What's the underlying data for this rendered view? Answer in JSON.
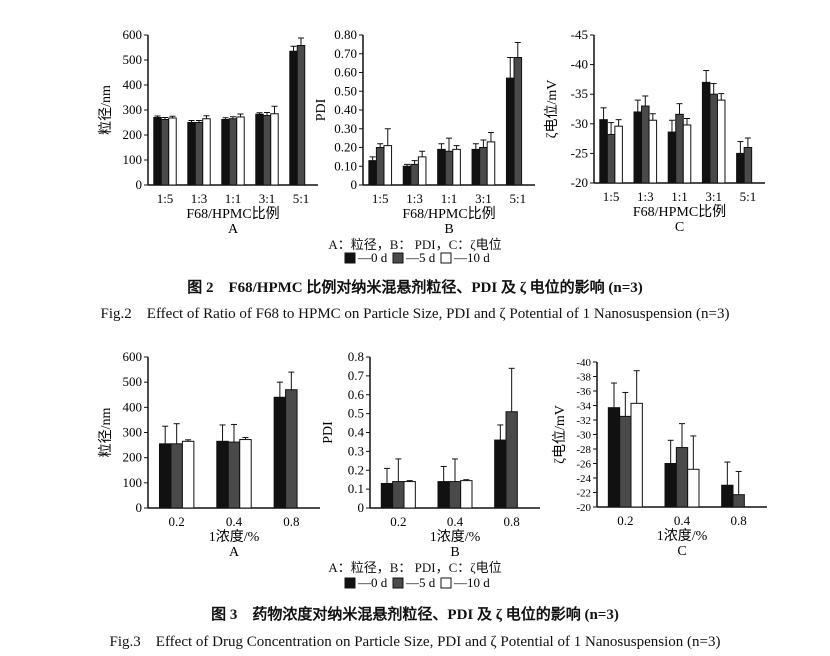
{
  "figures": [
    {
      "legend_text": "A：粒径，B： PDI，C：ζ电位",
      "legend": [
        "0 d",
        "5 d",
        "10 d"
      ],
      "caption_cn": "图 2　F68/HPMC 比例对纳米混悬剂粒径、PDI 及 ζ 电位的影响 (n=3)",
      "caption_en": "Fig.2　Effect of Ratio of F68 to HPMC on Particle Size, PDI and ζ Potential of 1 Nanosuspension (n=3)"
    },
    {
      "legend_text": "A：粒径，B： PDI，C：ζ电位",
      "legend": [
        "0 d",
        "5 d",
        "10 d"
      ],
      "caption_cn": "图 3　药物浓度对纳米混悬剂粒径、PDI 及 ζ 电位的影响 (n=3)",
      "caption_en": "Fig.3　Effect of Drug Concentration on Particle Size, PDI and ζ Potential of 1 Nanosuspension (n=3)"
    }
  ],
  "colors": {
    "0 d": "#111111",
    "5 d": "#4a4a4a",
    "10 d": "#ffffff"
  },
  "chart_data": [
    {
      "type": "bar",
      "panel": "A",
      "xlabel": "F68/HPMC比例",
      "ylabel": "粒径/nm",
      "categories": [
        "1:5",
        "1:3",
        "1:1",
        "3:1",
        "5:1"
      ],
      "ylim": [
        0,
        600
      ],
      "yticks": [
        0,
        100,
        200,
        300,
        400,
        500,
        600
      ],
      "ytick_labels": [
        "0",
        "100",
        "200",
        "300",
        "400",
        "500",
        "600"
      ],
      "series": [
        {
          "name": "0 d",
          "values": [
            270,
            250,
            262,
            283,
            535
          ],
          "errors": [
            6,
            8,
            7,
            6,
            20
          ]
        },
        {
          "name": "5 d",
          "values": [
            262,
            250,
            265,
            278,
            558
          ],
          "errors": [
            8,
            8,
            8,
            12,
            30
          ]
        },
        {
          "name": "10 d",
          "values": [
            268,
            265,
            272,
            285,
            null
          ],
          "errors": [
            7,
            12,
            12,
            30,
            null
          ]
        }
      ]
    },
    {
      "type": "bar",
      "panel": "B",
      "xlabel": "F68/HPMC比例",
      "ylabel": "PDI",
      "categories": [
        "1:5",
        "1:3",
        "1:1",
        "3:1",
        "5:1"
      ],
      "ylim": [
        0,
        0.8
      ],
      "yticks": [
        0,
        0.1,
        0.2,
        0.3,
        0.4,
        0.5,
        0.6,
        0.7,
        0.8
      ],
      "ytick_labels": [
        "0",
        "0.10",
        "0.20",
        "0.30",
        "0.40",
        "0.50",
        "0.60",
        "0.70",
        "0.80"
      ],
      "series": [
        {
          "name": "0 d",
          "values": [
            0.13,
            0.1,
            0.19,
            0.19,
            0.57
          ],
          "errors": [
            0.02,
            0.01,
            0.03,
            0.03,
            0.11
          ]
        },
        {
          "name": "5 d",
          "values": [
            0.2,
            0.11,
            0.18,
            0.2,
            0.68
          ],
          "errors": [
            0.02,
            0.02,
            0.07,
            0.04,
            0.08
          ]
        },
        {
          "name": "10 d",
          "values": [
            0.21,
            0.15,
            0.19,
            0.23,
            null
          ],
          "errors": [
            0.09,
            0.03,
            0.02,
            0.05,
            null
          ]
        }
      ]
    },
    {
      "type": "bar",
      "panel": "C",
      "xlabel": "F68/HPMC比例",
      "ylabel": "ζ电位/mV",
      "categories": [
        "1:5",
        "1:3",
        "1:1",
        "3:1",
        "5:1"
      ],
      "ylim": [
        -20,
        -45
      ],
      "yticks": [
        -20,
        -25,
        -30,
        -35,
        -40,
        -45
      ],
      "ytick_labels": [
        "-20",
        "-25",
        "-30",
        "-35",
        "-40",
        "-45"
      ],
      "series": [
        {
          "name": "0 d",
          "values": [
            -30.7,
            -32,
            -28.6,
            -37,
            -25
          ],
          "errors": [
            2,
            2,
            2,
            2,
            2
          ]
        },
        {
          "name": "5 d",
          "values": [
            -28.2,
            -33,
            -31.6,
            -35,
            -26
          ],
          "errors": [
            2,
            1.7,
            1.8,
            1.8,
            1.6
          ]
        },
        {
          "name": "10 d",
          "values": [
            -29.6,
            -30.6,
            -29.8,
            -34,
            null
          ],
          "errors": [
            1.1,
            1.1,
            1.1,
            1.1,
            null
          ]
        }
      ]
    },
    {
      "type": "bar",
      "panel": "A",
      "xlabel": "1浓度/%",
      "ylabel": "粒径/nm",
      "categories": [
        "0.2",
        "0.4",
        "0.8"
      ],
      "ylim": [
        0,
        600
      ],
      "yticks": [
        0,
        100,
        200,
        300,
        400,
        500,
        600
      ],
      "ytick_labels": [
        "0",
        "100",
        "200",
        "300",
        "400",
        "500",
        "600"
      ],
      "series": [
        {
          "name": "0 d",
          "values": [
            255,
            265,
            440
          ],
          "errors": [
            70,
            65,
            60
          ]
        },
        {
          "name": "5 d",
          "values": [
            255,
            262,
            470
          ],
          "errors": [
            80,
            70,
            70
          ]
        },
        {
          "name": "10 d",
          "values": [
            265,
            272,
            null
          ],
          "errors": [
            6,
            8,
            null
          ]
        }
      ]
    },
    {
      "type": "bar",
      "panel": "B",
      "xlabel": "1浓度/%",
      "ylabel": "PDI",
      "categories": [
        "0.2",
        "0.4",
        "0.8"
      ],
      "ylim": [
        0,
        0.8
      ],
      "yticks": [
        0,
        0.1,
        0.2,
        0.3,
        0.4,
        0.5,
        0.6,
        0.7,
        0.8
      ],
      "ytick_labels": [
        "0",
        "0.1",
        "0.2",
        "0.3",
        "0.4",
        "0.5",
        "0.6",
        "0.7",
        "0.8"
      ],
      "series": [
        {
          "name": "0 d",
          "values": [
            0.13,
            0.14,
            0.36
          ],
          "errors": [
            0.08,
            0.08,
            0.08
          ]
        },
        {
          "name": "5 d",
          "values": [
            0.14,
            0.14,
            0.51
          ],
          "errors": [
            0.12,
            0.12,
            0.23
          ]
        },
        {
          "name": "10 d",
          "values": [
            0.14,
            0.145,
            null
          ],
          "errors": [
            0.005,
            0.005,
            null
          ]
        }
      ]
    },
    {
      "type": "bar",
      "panel": "C",
      "xlabel": "1浓度/%",
      "ylabel": "ζ电位/mV",
      "categories": [
        "0.2",
        "0.4",
        "0.8"
      ],
      "ylim": [
        -20,
        -40
      ],
      "yticks": [
        -20,
        -22,
        -24,
        -26,
        -28,
        -30,
        -32,
        -34,
        -36,
        -38,
        -40
      ],
      "ytick_labels": [
        "-20",
        "-22",
        "-24",
        "-26",
        "-28",
        "-30",
        "-32",
        "-34",
        "-36",
        "-38",
        "-40"
      ],
      "series": [
        {
          "name": "0 d",
          "values": [
            -33.7,
            -26,
            -23
          ],
          "errors": [
            3.4,
            3.2,
            3.2
          ]
        },
        {
          "name": "5 d",
          "values": [
            -32.5,
            -28.2,
            -21.7
          ],
          "errors": [
            3.3,
            3.3,
            3.2
          ]
        },
        {
          "name": "10 d",
          "values": [
            -34.3,
            -25.2,
            null
          ],
          "errors": [
            4.5,
            4.6,
            null
          ]
        }
      ]
    }
  ]
}
